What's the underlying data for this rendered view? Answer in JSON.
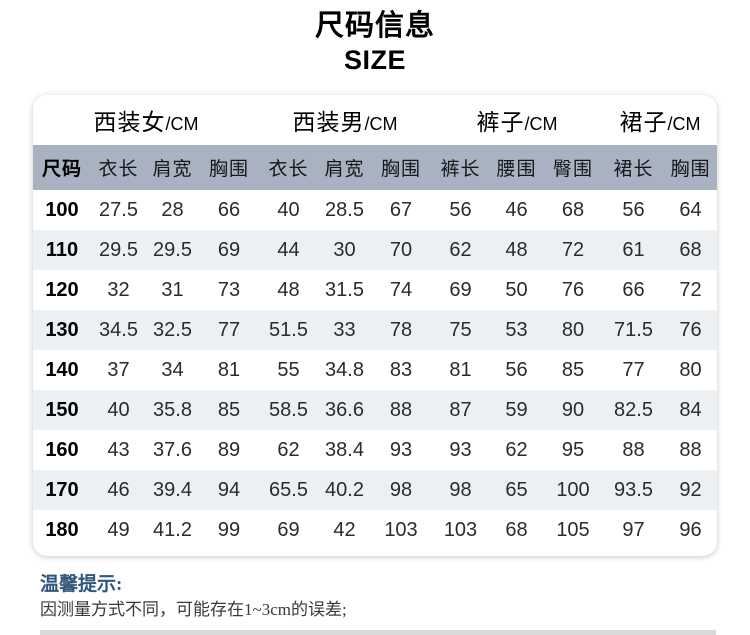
{
  "title": {
    "cn": "尺码信息",
    "en": "SIZE"
  },
  "table": {
    "groups": [
      {
        "name": "西装女",
        "unit": "/CM",
        "span": 4
      },
      {
        "name": "西装男",
        "unit": "/CM",
        "span": 3
      },
      {
        "name": "裤子",
        "unit": "/CM",
        "span": 3
      },
      {
        "name": "裙子",
        "unit": "/CM",
        "span": 2
      }
    ],
    "columns": [
      "尺码",
      "衣长",
      "肩宽",
      "胸围",
      "衣长",
      "肩宽",
      "胸围",
      "裤长",
      "腰围",
      "臀围",
      "裙长",
      "胸围"
    ],
    "rows": [
      [
        "100",
        "27.5",
        "28",
        "66",
        "40",
        "28.5",
        "67",
        "56",
        "46",
        "68",
        "56",
        "64"
      ],
      [
        "110",
        "29.5",
        "29.5",
        "69",
        "44",
        "30",
        "70",
        "62",
        "48",
        "72",
        "61",
        "68"
      ],
      [
        "120",
        "32",
        "31",
        "73",
        "48",
        "31.5",
        "74",
        "69",
        "50",
        "76",
        "66",
        "72"
      ],
      [
        "130",
        "34.5",
        "32.5",
        "77",
        "51.5",
        "33",
        "78",
        "75",
        "53",
        "80",
        "71.5",
        "76"
      ],
      [
        "140",
        "37",
        "34",
        "81",
        "55",
        "34.8",
        "83",
        "81",
        "56",
        "85",
        "77",
        "80"
      ],
      [
        "150",
        "40",
        "35.8",
        "85",
        "58.5",
        "36.6",
        "88",
        "87",
        "59",
        "90",
        "82.5",
        "84"
      ],
      [
        "160",
        "43",
        "37.6",
        "89",
        "62",
        "38.4",
        "93",
        "93",
        "62",
        "95",
        "88",
        "88"
      ],
      [
        "170",
        "46",
        "39.4",
        "94",
        "65.5",
        "40.2",
        "98",
        "98",
        "65",
        "100",
        "93.5",
        "92"
      ],
      [
        "180",
        "49",
        "41.2",
        "99",
        "69",
        "42",
        "103",
        "103",
        "68",
        "105",
        "97",
        "96"
      ]
    ]
  },
  "tips": {
    "title": "温馨提示:",
    "line1": "因测量方式不同，可能存在1~3cm的误差;"
  },
  "colors": {
    "subheader_bg": "#a9b2c0",
    "row_alt_bg": "#edf0f3",
    "tip_title": "#31567c",
    "bottom_bar": "#d9d9d9"
  }
}
